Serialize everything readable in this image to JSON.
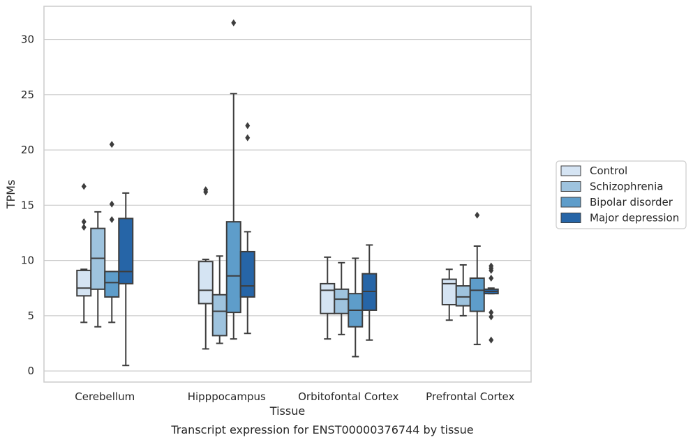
{
  "chart_data": {
    "type": "box",
    "caption": "Transcript expression for ENST00000376744 by tissue",
    "xlabel": "Tissue",
    "ylabel": "TPMs",
    "ylim": [
      -1,
      33
    ],
    "yticks": [
      0,
      5,
      10,
      15,
      20,
      25,
      30
    ],
    "grid": "horizontal",
    "legend_position": "right",
    "categories": [
      "Cerebellum",
      "Hipppocampus",
      "Orbitofontal Cortex",
      "Prefrontal Cortex"
    ],
    "series": [
      {
        "name": "Control",
        "color": "#d5e4f3",
        "boxes": [
          {
            "whislo": 4.4,
            "q1": 6.8,
            "med": 7.5,
            "q3": 9.1,
            "whishi": 9.2,
            "fliers": [
              13.0,
              13.5,
              16.7
            ]
          },
          {
            "whislo": 2.0,
            "q1": 6.1,
            "med": 7.3,
            "q3": 9.9,
            "whishi": 10.1,
            "fliers": [
              16.2,
              16.4
            ]
          },
          {
            "whislo": 2.9,
            "q1": 5.2,
            "med": 7.3,
            "q3": 7.9,
            "whishi": 10.3,
            "fliers": []
          },
          {
            "whislo": 4.6,
            "q1": 6.0,
            "med": 7.9,
            "q3": 8.3,
            "whishi": 9.2,
            "fliers": []
          }
        ]
      },
      {
        "name": "Schizophrenia",
        "color": "#9ec3de",
        "boxes": [
          {
            "whislo": 4.0,
            "q1": 7.4,
            "med": 10.2,
            "q3": 12.9,
            "whishi": 14.4,
            "fliers": []
          },
          {
            "whislo": 2.5,
            "q1": 3.2,
            "med": 5.4,
            "q3": 6.9,
            "whishi": 10.4,
            "fliers": []
          },
          {
            "whislo": 3.3,
            "q1": 5.2,
            "med": 6.5,
            "q3": 7.4,
            "whishi": 9.8,
            "fliers": []
          },
          {
            "whislo": 5.0,
            "q1": 5.9,
            "med": 6.7,
            "q3": 7.7,
            "whishi": 9.6,
            "fliers": []
          }
        ]
      },
      {
        "name": "Bipolar disorder",
        "color": "#5e9dca",
        "boxes": [
          {
            "whislo": 4.4,
            "q1": 6.7,
            "med": 8.0,
            "q3": 9.0,
            "whishi": 9.0,
            "fliers": [
              13.7,
              15.1,
              20.5
            ]
          },
          {
            "whislo": 2.9,
            "q1": 5.3,
            "med": 8.6,
            "q3": 13.5,
            "whishi": 25.1,
            "fliers": [
              31.5
            ]
          },
          {
            "whislo": 1.3,
            "q1": 4.0,
            "med": 5.5,
            "q3": 7.0,
            "whishi": 10.2,
            "fliers": []
          },
          {
            "whislo": 2.4,
            "q1": 5.4,
            "med": 7.3,
            "q3": 8.4,
            "whishi": 11.3,
            "fliers": [
              14.1
            ]
          }
        ]
      },
      {
        "name": "Major depression",
        "color": "#2665a7",
        "boxes": [
          {
            "whislo": 0.5,
            "q1": 7.9,
            "med": 9.0,
            "q3": 13.8,
            "whishi": 16.1,
            "fliers": []
          },
          {
            "whislo": 3.4,
            "q1": 6.7,
            "med": 7.7,
            "q3": 10.8,
            "whishi": 12.6,
            "fliers": [
              21.1,
              22.2
            ]
          },
          {
            "whislo": 2.8,
            "q1": 5.5,
            "med": 7.2,
            "q3": 8.8,
            "whishi": 11.4,
            "fliers": []
          },
          {
            "whislo": 7.0,
            "q1": 7.0,
            "med": 7.2,
            "q3": 7.4,
            "whishi": 7.5,
            "fliers": [
              2.8,
              4.9,
              5.3,
              8.4,
              9.1,
              9.3,
              9.5
            ]
          }
        ]
      }
    ]
  }
}
